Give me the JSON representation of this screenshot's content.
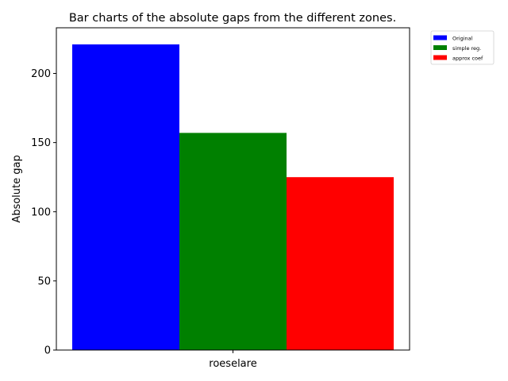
{
  "chart_data": {
    "type": "bar",
    "title": "Bar charts of the absolute gaps from the different zones.",
    "xlabel": "",
    "ylabel": "Absolute gap",
    "categories": [
      "roeselare"
    ],
    "series": [
      {
        "name": "Original",
        "values": [
          221
        ],
        "color": "#0000ff"
      },
      {
        "name": "simple reg.",
        "values": [
          157
        ],
        "color": "#008000"
      },
      {
        "name": "approx coef",
        "values": [
          125
        ],
        "color": "#ff0000"
      }
    ],
    "ylim": [
      0,
      233
    ],
    "yticks": [
      0,
      50,
      100,
      150,
      200
    ],
    "grid": false,
    "legend_position": "outside-top-right"
  }
}
